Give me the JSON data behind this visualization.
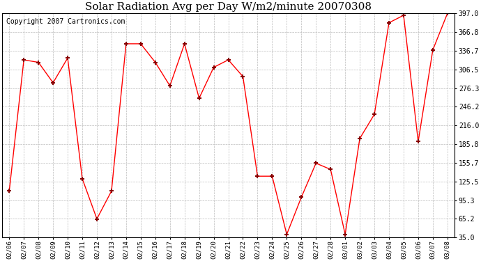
{
  "title": "Solar Radiation Avg per Day W/m2/minute 20070308",
  "copyright": "Copyright 2007 Cartronics.com",
  "x_labels": [
    "02/06",
    "02/07",
    "02/08",
    "02/09",
    "02/10",
    "02/11",
    "02/12",
    "02/13",
    "02/14",
    "02/15",
    "02/16",
    "02/17",
    "02/18",
    "02/19",
    "02/20",
    "02/21",
    "02/22",
    "02/23",
    "02/24",
    "02/25",
    "02/26",
    "02/27",
    "02/28",
    "03/01",
    "03/02",
    "03/03",
    "03/04",
    "03/05",
    "03/06",
    "03/07",
    "03/08"
  ],
  "y_values": [
    110,
    322,
    318,
    285,
    325,
    130,
    65,
    110,
    348,
    348,
    318,
    280,
    348,
    260,
    310,
    322,
    295,
    134,
    134,
    40,
    100,
    155,
    145,
    40,
    195,
    234,
    382,
    394,
    190,
    338,
    397
  ],
  "y_ticks": [
    35.0,
    65.2,
    95.3,
    125.5,
    155.7,
    185.8,
    216.0,
    246.2,
    276.3,
    306.5,
    336.7,
    366.8,
    397.0
  ],
  "line_color": "#ff0000",
  "marker_color": "#880000",
  "bg_color": "#ffffff",
  "plot_bg_color": "#ffffff",
  "grid_color": "#bbbbbb",
  "title_fontsize": 11,
  "copyright_fontsize": 7
}
